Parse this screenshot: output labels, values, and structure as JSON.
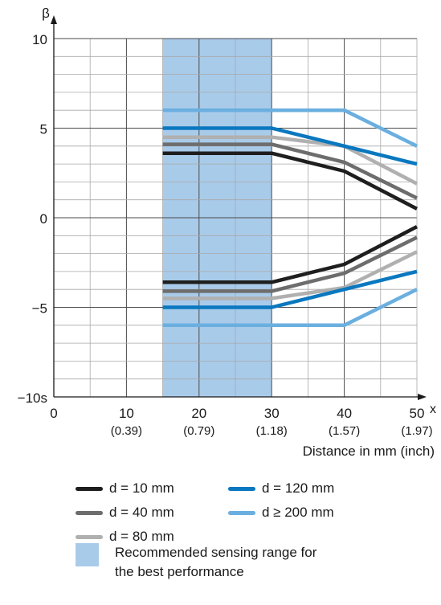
{
  "colors": {
    "d10": "#1e1e1e",
    "d40": "#6d6d6d",
    "d80": "#b0b0b0",
    "d120": "#0a78c0",
    "d200": "#6aafe0",
    "range": "#a9cbea",
    "grid": "#a8a8a8",
    "axis": "#1a1a1a"
  },
  "chart_data": {
    "type": "line",
    "ylabel": "β",
    "xlabel": "Distance in mm (inch)",
    "xaxis_end_label": "x",
    "xlim": [
      0,
      50
    ],
    "ylim": [
      -10,
      10
    ],
    "x_ticks": [
      {
        "value": 0,
        "label": "0",
        "sub": ""
      },
      {
        "value": 10,
        "label": "10",
        "sub": "(0.39)"
      },
      {
        "value": 20,
        "label": "20",
        "sub": "(0.79)"
      },
      {
        "value": 30,
        "label": "30",
        "sub": "(1.18)"
      },
      {
        "value": 40,
        "label": "40",
        "sub": "(1.57)"
      },
      {
        "value": 50,
        "label": "50",
        "sub": "(1.97)"
      }
    ],
    "y_ticks": [
      {
        "value": 10,
        "label": "10"
      },
      {
        "value": 5,
        "label": "5"
      },
      {
        "value": 0,
        "label": "0"
      },
      {
        "value": -5,
        "label": "−5"
      },
      {
        "value": -10,
        "label": "−10s"
      }
    ],
    "recommended_range": [
      15,
      30
    ],
    "series": [
      {
        "name": "d = 10 mm",
        "color_key": "d10",
        "upper": [
          [
            15,
            3.6
          ],
          [
            30,
            3.6
          ],
          [
            40,
            2.6
          ],
          [
            50,
            0.5
          ]
        ],
        "lower": [
          [
            15,
            -3.6
          ],
          [
            30,
            -3.6
          ],
          [
            40,
            -2.6
          ],
          [
            50,
            -0.5
          ]
        ]
      },
      {
        "name": "d = 40 mm",
        "color_key": "d40",
        "upper": [
          [
            15,
            4.1
          ],
          [
            30,
            4.1
          ],
          [
            40,
            3.1
          ],
          [
            50,
            1.1
          ]
        ],
        "lower": [
          [
            15,
            -4.1
          ],
          [
            30,
            -4.1
          ],
          [
            40,
            -3.1
          ],
          [
            50,
            -1.1
          ]
        ]
      },
      {
        "name": "d = 80 mm",
        "color_key": "d80",
        "upper": [
          [
            15,
            4.5
          ],
          [
            30,
            4.5
          ],
          [
            40,
            4.0
          ],
          [
            50,
            1.9
          ]
        ],
        "lower": [
          [
            15,
            -4.5
          ],
          [
            30,
            -4.5
          ],
          [
            40,
            -3.9
          ],
          [
            50,
            -1.9
          ]
        ]
      },
      {
        "name": "d = 120 mm",
        "color_key": "d120",
        "upper": [
          [
            15,
            5.0
          ],
          [
            30,
            5.0
          ],
          [
            40,
            4.0
          ],
          [
            50,
            3.0
          ]
        ],
        "lower": [
          [
            15,
            -5.0
          ],
          [
            30,
            -5.0
          ],
          [
            40,
            -4.0
          ],
          [
            50,
            -3.0
          ]
        ]
      },
      {
        "name": "d ≥ 200 mm",
        "color_key": "d200",
        "upper": [
          [
            15,
            6.0
          ],
          [
            40,
            6.0
          ],
          [
            50,
            4.0
          ]
        ],
        "lower": [
          [
            15,
            -6.0
          ],
          [
            40,
            -6.0
          ],
          [
            50,
            -4.0
          ]
        ]
      }
    ],
    "range_legend_label": "Recommended sensing range for the best performance"
  },
  "legend": {
    "items": [
      {
        "label": "d = 10 mm",
        "color_key": "d10"
      },
      {
        "label": "d = 120 mm",
        "color_key": "d120"
      },
      {
        "label": "d = 40 mm",
        "color_key": "d40"
      },
      {
        "label": "d ≥ 200 mm",
        "color_key": "d200"
      },
      {
        "label": "d = 80 mm",
        "color_key": "d80"
      }
    ]
  }
}
